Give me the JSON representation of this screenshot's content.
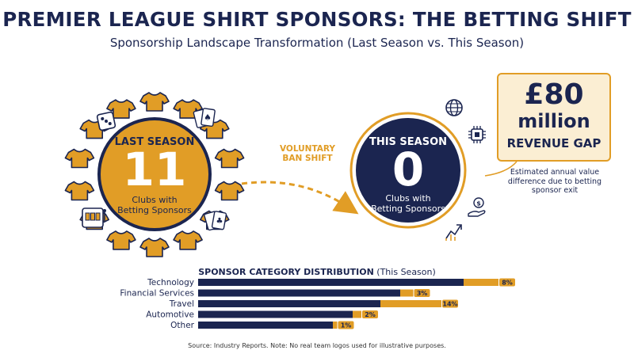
{
  "header": {
    "title": "PREMIER LEAGUE SHIRT SPONSORS: THE BETTING SHIFT",
    "subtitle": "Sponsorship Landscape Transformation (Last Season vs. This Season)"
  },
  "last_season": {
    "label": "LAST SEASON",
    "count": "11",
    "desc_line1": "Clubs with",
    "desc_line2": "Betting Sponsors"
  },
  "this_season": {
    "label": "THIS SEASON",
    "count": "0",
    "desc_line1": "Clubs with",
    "desc_line2": "Betting Sponsors"
  },
  "shift": {
    "line1": "VOLUNTARY",
    "line2": "BAN SHIFT"
  },
  "revenue_gap": {
    "amount": "£80",
    "unit": "million",
    "label": "REVENUE GAP",
    "note_line1": "Estimated annual value",
    "note_line2": "difference due to betting",
    "note_line3": "sponsor exit"
  },
  "icons": {
    "shirts": "shirt-icon",
    "dice": "dice-icon",
    "cards": "playing-cards-icon",
    "slot": "slot-machine-icon",
    "globe": "globe-icon",
    "chip": "chip-icon",
    "money": "money-hand-icon",
    "growth": "growth-arrow-icon"
  },
  "colors": {
    "navy": "#1b2550",
    "gold": "#e19d26",
    "cream": "#fbeed3"
  },
  "chart_data": {
    "type": "bar",
    "title": "SPONSOR CATEGORY DISTRIBUTION",
    "title_suffix": "(This Season)",
    "categories": [
      "Technology",
      "Financial Services",
      "Travel",
      "Automotive",
      "Other"
    ],
    "values": [
      8,
      3,
      14,
      2,
      1
    ],
    "value_labels": [
      "8%",
      "3%",
      "14%",
      "2%",
      "1%"
    ],
    "orientation": "horizontal"
  },
  "footer": {
    "source": "Source: Industry Reports. Note: No real team logos used for illustrative purposes."
  }
}
